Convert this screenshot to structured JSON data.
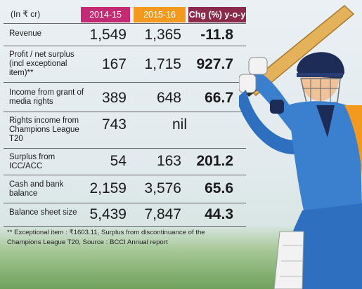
{
  "table": {
    "unit_label": "(In ₹ cr)",
    "col_year1": "2014-15",
    "col_year2": "2015-16",
    "col_change": "Chg (%) y-o-y",
    "rows": [
      {
        "label": "Revenue",
        "v1": "1,549",
        "v2": "1,365",
        "chg": "-11.8"
      },
      {
        "label": "Profit / net surplus (incl exceptional item)**",
        "v1": "167",
        "v2": "1,715",
        "chg": "927.7"
      },
      {
        "label": "Income from grant of media rights",
        "v1": "389",
        "v2": "648",
        "chg": "66.7"
      },
      {
        "label": "Rights income from Champions League T20",
        "v1": "743",
        "v2": "nil",
        "chg": ""
      },
      {
        "label": "Surplus from ICC/ACC",
        "v1": "54",
        "v2": "163",
        "chg": "201.2"
      },
      {
        "label": "Cash and bank balance",
        "v1": "2,159",
        "v2": "3,576",
        "chg": "65.6"
      },
      {
        "label": "Balance sheet size",
        "v1": "5,439",
        "v2": "7,847",
        "chg": "44.3"
      }
    ]
  },
  "footnote": "** Exceptional item : ₹1603.11, Surplus from discontinuance of the Champions League T20, Source : BCCI Annual report",
  "colors": {
    "year1_header": "#c42a73",
    "year2_header": "#f39a1e",
    "change_header": "#8c2a4b",
    "jersey_blue": "#3b7fcf",
    "helmet_navy": "#1d2c57",
    "bat": "#e3b25a",
    "grass": "#6fa15c"
  },
  "illustration": "cricket-batsman-illustration"
}
